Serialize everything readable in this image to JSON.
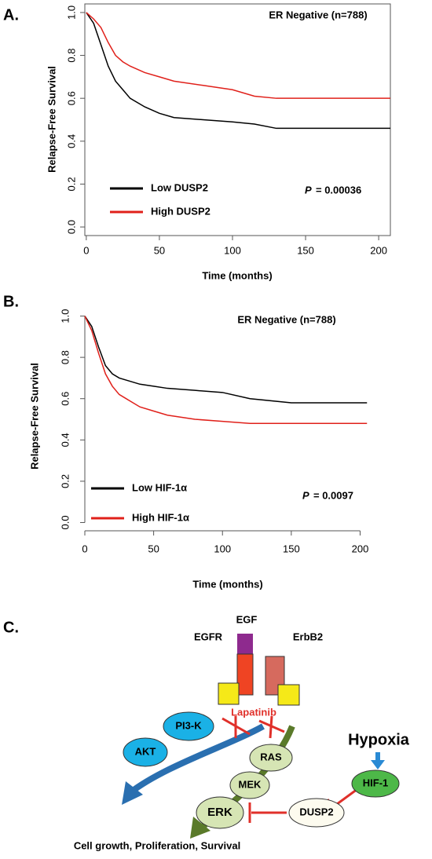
{
  "chart_data": [
    {
      "type": "line",
      "panel": "A.",
      "title": "ER Negative (n=788)",
      "x_label": "Time (months)",
      "y_label": "Relapse-Free Survival",
      "x": [
        0,
        5,
        10,
        15,
        20,
        25,
        30,
        40,
        50,
        60,
        80,
        100,
        115,
        130,
        150,
        208
      ],
      "series": [
        {
          "name": "Low DUSP2",
          "color": "#000000",
          "values": [
            1,
            0.95,
            0.85,
            0.75,
            0.68,
            0.64,
            0.6,
            0.56,
            0.53,
            0.51,
            0.5,
            0.49,
            0.48,
            0.46,
            0.46,
            0.46
          ]
        },
        {
          "name": "High DUSP2",
          "color": "#e0201a",
          "values": [
            1,
            0.97,
            0.93,
            0.86,
            0.8,
            0.77,
            0.75,
            0.72,
            0.7,
            0.68,
            0.66,
            0.64,
            0.61,
            0.6,
            0.6,
            0.6
          ]
        }
      ],
      "p_label": "P",
      "p_text": "= 0.00036",
      "xlim": [
        -1,
        208
      ],
      "xticks": [
        0,
        50,
        100,
        150,
        200
      ],
      "ylim": [
        -0.04,
        1.04
      ],
      "yticks": [
        {
          "value": 0,
          "label": "0.0"
        },
        0.2,
        0.4,
        0.6,
        0.8,
        {
          "value": 1,
          "label": "1.0"
        }
      ],
      "frame": true,
      "legend": "lower left"
    },
    {
      "type": "line",
      "panel": "B.",
      "title": "ER Negative (n=788)",
      "x_label": "Time (months)",
      "y_label": "Relapse-Free Survival",
      "x": [
        0,
        5,
        10,
        15,
        20,
        25,
        30,
        40,
        50,
        60,
        80,
        100,
        120,
        150,
        205
      ],
      "series": [
        {
          "name": "Low HIF-1α",
          "color": "#000000",
          "values": [
            1,
            0.95,
            0.85,
            0.76,
            0.72,
            0.7,
            0.69,
            0.67,
            0.66,
            0.65,
            0.64,
            0.63,
            0.6,
            0.58,
            0.58
          ]
        },
        {
          "name": "High HIF-1α",
          "color": "#e0201a",
          "values": [
            1,
            0.93,
            0.82,
            0.72,
            0.66,
            0.62,
            0.6,
            0.56,
            0.54,
            0.52,
            0.5,
            0.49,
            0.48,
            0.48,
            0.48
          ]
        }
      ],
      "p_label": "P",
      "p_text": "= 0.0097",
      "xlim": [
        0,
        210
      ],
      "xticks": [
        0,
        50,
        100,
        150,
        200
      ],
      "ylim": [
        -0.04,
        1.04
      ],
      "yticks": [
        {
          "value": 0,
          "label": "0.0"
        },
        0.2,
        0.4,
        0.6,
        0.8,
        {
          "value": 1,
          "label": "1.0"
        }
      ],
      "frame": false,
      "legend": "lower left"
    }
  ],
  "diagram": {
    "panel": "C.",
    "egf": "EGF",
    "egfr": "EGFR",
    "erbb2": "ErbB2",
    "drug": "Lapatinib",
    "hypoxia": "Hypoxia",
    "nodes": [
      "PI3-K",
      "AKT",
      "RAS",
      "MEK",
      "ERK",
      "DUSP2",
      "HIF-1"
    ],
    "outcome": "Cell growth, Proliferation, Survival"
  }
}
